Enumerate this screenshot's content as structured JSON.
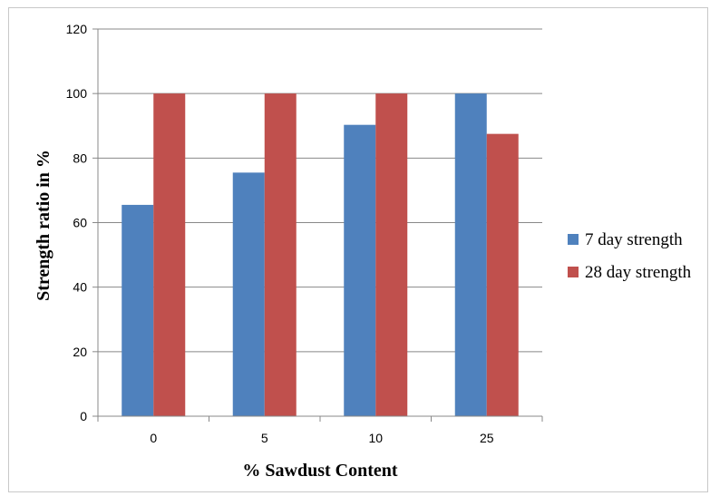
{
  "chart_data": {
    "type": "bar",
    "title": "",
    "xlabel": "% Sawdust Content",
    "ylabel": "Strength ratio in %",
    "categories": [
      "0",
      "5",
      "10",
      "25"
    ],
    "series": [
      {
        "name": "7 day strength",
        "values": [
          65.5,
          75.5,
          90.3,
          100
        ],
        "color": "#4f81bd"
      },
      {
        "name": "28 day strength",
        "values": [
          100,
          100,
          100,
          87.5
        ],
        "color": "#c0504d"
      }
    ],
    "ylim": [
      0,
      120
    ],
    "yticks": [
      "0",
      "20",
      "40",
      "60",
      "80",
      "100",
      "120"
    ],
    "grid": true,
    "legend_position": "right"
  }
}
